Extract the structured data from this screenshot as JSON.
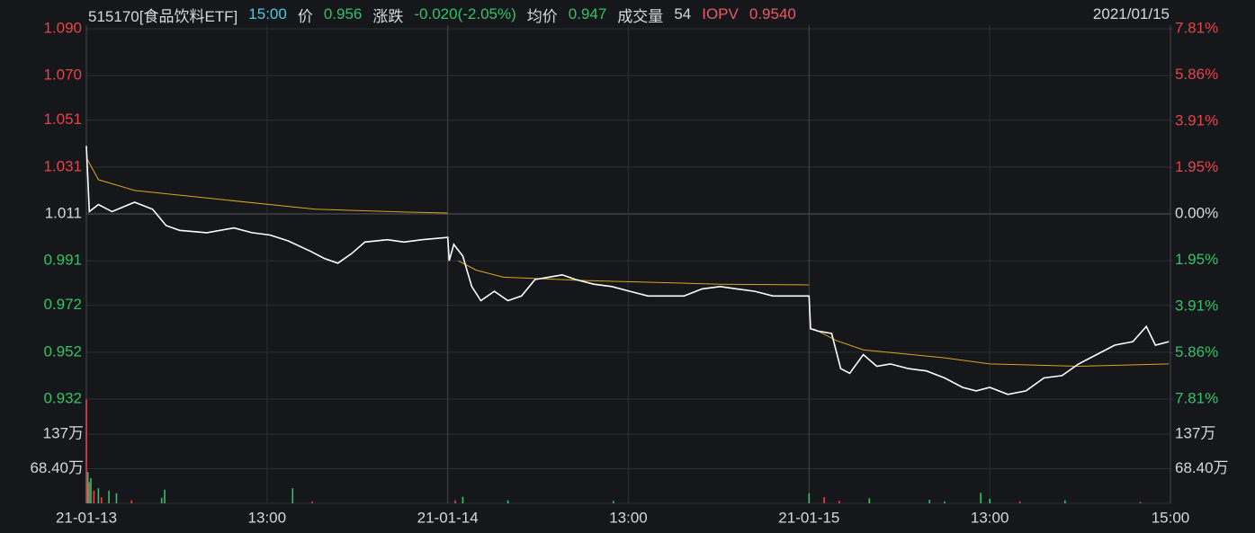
{
  "chart_data": {
    "type": "line",
    "title": "515170[食品饮料ETF]",
    "header": {
      "time": "15:00",
      "price": 0.956,
      "change_label": "涨跌",
      "change": "-0.020(-2.05%)",
      "avg": 0.947,
      "volume_label": "成交量",
      "volume": 54,
      "iopv_label": "IOPV",
      "iopv": "0.9540",
      "date": "2021/01/15"
    },
    "colors": {
      "background": "#16171b",
      "grid": "#2c2d32",
      "axis_text": "#d8d8d8",
      "up": "#e8424a",
      "down": "#2ec467",
      "time": "#3fd0e6",
      "iopv": "#e45c66"
    },
    "xlim": [
      0,
      720
    ],
    "xticks": [
      {
        "value": 0,
        "label": "21-01-13"
      },
      {
        "value": 120,
        "label": "13:00"
      },
      {
        "value": 240,
        "label": "21-01-14"
      },
      {
        "value": 360,
        "label": "13:00"
      },
      {
        "value": 480,
        "label": "21-01-15"
      },
      {
        "value": 600,
        "label": "13:00"
      },
      {
        "value": 720,
        "label": "15:00"
      }
    ],
    "ylim": [
      0.932,
      1.09
    ],
    "yticks": [
      {
        "value": 1.09,
        "label": "1.090"
      },
      {
        "value": 1.07,
        "label": "1.070"
      },
      1.051,
      1.031,
      1.011,
      0.991,
      0.972,
      0.952,
      0.932
    ],
    "y2lim": [
      -7.81,
      7.81
    ],
    "y2ticks": [
      {
        "value": 7.81,
        "label": "7.81%"
      },
      {
        "value": 5.86,
        "label": "5.86%"
      },
      {
        "value": 3.91,
        "label": "3.91%"
      },
      {
        "value": 1.95,
        "label": "1.95%"
      },
      {
        "value": 0,
        "label": "0.00%"
      },
      {
        "value": -1.95,
        "label": "1.95%"
      },
      {
        "value": -3.91,
        "label": "3.91%"
      },
      {
        "value": -5.86,
        "label": "5.86%"
      },
      {
        "value": -7.81,
        "label": "7.81%"
      }
    ],
    "series": [
      {
        "name": "价",
        "color": "#ffffff",
        "x": [
          0,
          2,
          8,
          17,
          32,
          44,
          53,
          62,
          80,
          98,
          110,
          122,
          134,
          149,
          158,
          167,
          176,
          185,
          200,
          211,
          223,
          240,
          241,
          244,
          250,
          256,
          262,
          271,
          280,
          289,
          298,
          307,
          316,
          325,
          337,
          349,
          361,
          373,
          385,
          397,
          409,
          421,
          432,
          444,
          456,
          468,
          480,
          481,
          486,
          495,
          501,
          507,
          516,
          525,
          534,
          546,
          558,
          570,
          582,
          591,
          600,
          612,
          624,
          636,
          648,
          659,
          671,
          683,
          695,
          704,
          710,
          719
        ],
        "values": [
          1.04,
          1.012,
          1.015,
          1.012,
          1.016,
          1.013,
          1.006,
          1.004,
          1.003,
          1.005,
          1.003,
          1.002,
          0.9995,
          0.995,
          0.992,
          0.99,
          0.994,
          0.999,
          1.0,
          0.999,
          1.0,
          1.001,
          0.991,
          0.998,
          0.993,
          0.98,
          0.974,
          0.978,
          0.974,
          0.976,
          0.983,
          0.984,
          0.985,
          0.983,
          0.981,
          0.98,
          0.978,
          0.976,
          0.976,
          0.976,
          0.979,
          0.98,
          0.979,
          0.978,
          0.976,
          0.976,
          0.976,
          0.962,
          0.961,
          0.96,
          0.945,
          0.943,
          0.951,
          0.946,
          0.947,
          0.945,
          0.944,
          0.941,
          0.937,
          0.9355,
          0.937,
          0.934,
          0.9355,
          0.941,
          0.942,
          0.947,
          0.951,
          0.955,
          0.9565,
          0.963,
          0.955,
          0.9565
        ]
      },
      {
        "name": "均价",
        "color": "#d9a520",
        "x": [
          0,
          8,
          32,
          92,
          152,
          211,
          240,
          240.5,
          247,
          259,
          277,
          331,
          421,
          480,
          480.5,
          483,
          498,
          516,
          570,
          600,
          659,
          719
        ],
        "values": [
          1.035,
          1.0256,
          1.021,
          1.017,
          1.013,
          1.0118,
          1.0114,
          null,
          0.991,
          0.987,
          0.984,
          0.9826,
          0.981,
          0.9807,
          null,
          0.962,
          0.957,
          0.953,
          0.9496,
          0.947,
          0.946,
          0.947
        ]
      }
    ],
    "vlim": [
      0,
      1370000
    ],
    "vticks": [
      {
        "value": 1370000,
        "label": "137万"
      },
      {
        "value": 684000,
        "label": "68.40万"
      }
    ],
    "volume": [
      {
        "color": "#e8424a",
        "x": [
          0,
          2,
          5,
          10,
          30,
          150,
          245,
          490,
          500,
          620,
          700
        ],
        "values": [
          2060000,
          420000,
          250000,
          120000,
          60000,
          40000,
          60000,
          120000,
          50000,
          40000,
          30000
        ]
      },
      {
        "color": "#2ec467",
        "x": [
          1,
          3,
          8,
          15,
          20,
          50,
          52,
          137,
          250,
          280,
          350,
          480,
          520,
          560,
          570,
          594,
          600,
          650
        ],
        "values": [
          620000,
          500000,
          300000,
          250000,
          200000,
          110000,
          270000,
          300000,
          130000,
          60000,
          50000,
          200000,
          100000,
          70000,
          40000,
          210000,
          90000,
          60000
        ]
      }
    ]
  }
}
